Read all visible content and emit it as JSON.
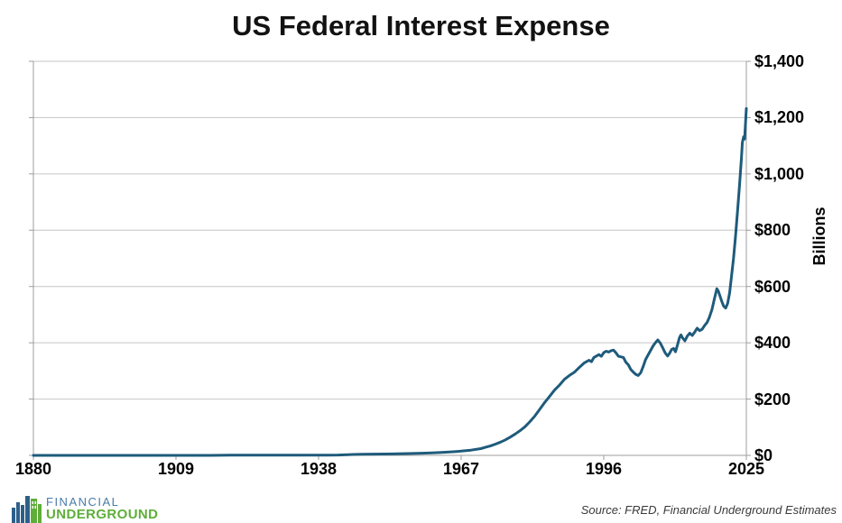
{
  "title": "US Federal Interest Expense",
  "colors": {
    "line": "#1E5B7B",
    "grid": "#C6C6C6",
    "axis": "#9C9C9C",
    "title_text": "#121212",
    "tick_text": "#000000",
    "logo_blue": "#4A7BA6",
    "logo_green": "#5FAE3A",
    "source_text": "#3A3A3A",
    "background": "#FFFFFF"
  },
  "y_axis": {
    "label": "Billions",
    "ticks": [
      "$0",
      "$200",
      "$400",
      "$600",
      "$800",
      "$1,000",
      "$1,200",
      "$1,400"
    ],
    "min": 0,
    "max": 1400,
    "step": 200
  },
  "x_axis": {
    "ticks": [
      "1880",
      "1909",
      "1938",
      "1967",
      "1996",
      "2025"
    ],
    "tick_years": [
      1880,
      1909,
      1938,
      1967,
      1996,
      2025
    ],
    "min": 1880,
    "max": 2025
  },
  "footer": {
    "logo_line1": "FINANCIAL",
    "logo_line2": "UNDERGROUND",
    "source": "Source: FRED, Financial Underground Estimates"
  },
  "chart_data": {
    "type": "line",
    "title": "US Federal Interest Expense",
    "xlabel": "",
    "ylabel": "Billions",
    "xlim": [
      1880,
      2025
    ],
    "ylim": [
      0,
      1400
    ],
    "y_tick_step": 200,
    "grid": true,
    "legend": false,
    "series": [
      {
        "name": "US Federal Interest Expense ($ Billions)",
        "color": "#1E5B7B",
        "points": [
          [
            1880,
            0.1
          ],
          [
            1885,
            0.08
          ],
          [
            1890,
            0.06
          ],
          [
            1895,
            0.05
          ],
          [
            1900,
            0.05
          ],
          [
            1905,
            0.04
          ],
          [
            1910,
            0.03
          ],
          [
            1914,
            0.03
          ],
          [
            1916,
            0.05
          ],
          [
            1918,
            0.3
          ],
          [
            1920,
            1.0
          ],
          [
            1923,
            1.05
          ],
          [
            1926,
            0.85
          ],
          [
            1929,
            0.7
          ],
          [
            1932,
            0.65
          ],
          [
            1935,
            0.8
          ],
          [
            1938,
            0.95
          ],
          [
            1940,
            1.1
          ],
          [
            1942,
            1.4
          ],
          [
            1944,
            2.6
          ],
          [
            1945,
            3.3
          ],
          [
            1947,
            4.2
          ],
          [
            1949,
            4.5
          ],
          [
            1951,
            4.7
          ],
          [
            1953,
            5.2
          ],
          [
            1955,
            6.0
          ],
          [
            1957,
            6.8
          ],
          [
            1959,
            7.6
          ],
          [
            1961,
            9.0
          ],
          [
            1963,
            10.5
          ],
          [
            1965,
            12.5
          ],
          [
            1967,
            15.0
          ],
          [
            1969,
            18.5
          ],
          [
            1971,
            24.0
          ],
          [
            1972,
            29.0
          ],
          [
            1973,
            34.0
          ],
          [
            1974,
            40.0
          ],
          [
            1975,
            47.0
          ],
          [
            1976,
            55.0
          ],
          [
            1977,
            65.0
          ],
          [
            1978,
            76.0
          ],
          [
            1979,
            88.0
          ],
          [
            1980,
            102.0
          ],
          [
            1981,
            120.0
          ],
          [
            1982,
            140.0
          ],
          [
            1983,
            164.0
          ],
          [
            1984,
            188.0
          ],
          [
            1985,
            210.0
          ],
          [
            1986,
            232.0
          ],
          [
            1987,
            250.0
          ],
          [
            1988,
            270.0
          ],
          [
            1989,
            284.0
          ],
          [
            1990,
            295.0
          ],
          [
            1991,
            312.0
          ],
          [
            1992,
            328.0
          ],
          [
            1993,
            338.0
          ],
          [
            1993.5,
            333.0
          ],
          [
            1994,
            348.0
          ],
          [
            1995,
            358.0
          ],
          [
            1995.5,
            352.0
          ],
          [
            1996,
            365.0
          ],
          [
            1996.5,
            370.0
          ],
          [
            1997,
            367.0
          ],
          [
            1997.5,
            372.0
          ],
          [
            1998,
            374.0
          ],
          [
            1998.5,
            364.0
          ],
          [
            1999,
            352.0
          ],
          [
            2000,
            348.0
          ],
          [
            2000.5,
            331.0
          ],
          [
            2001,
            322.0
          ],
          [
            2001.5,
            305.0
          ],
          [
            2002,
            296.0
          ],
          [
            2002.5,
            288.0
          ],
          [
            2003,
            284.0
          ],
          [
            2003.5,
            293.0
          ],
          [
            2004,
            315.0
          ],
          [
            2004.5,
            340.0
          ],
          [
            2005,
            356.0
          ],
          [
            2005.5,
            372.0
          ],
          [
            2006,
            388.0
          ],
          [
            2006.5,
            400.0
          ],
          [
            2007,
            410.0
          ],
          [
            2007.5,
            399.0
          ],
          [
            2008,
            382.0
          ],
          [
            2008.5,
            364.0
          ],
          [
            2009,
            353.0
          ],
          [
            2009.4,
            363.0
          ],
          [
            2009.8,
            376.0
          ],
          [
            2010.2,
            380.0
          ],
          [
            2010.6,
            368.0
          ],
          [
            2011,
            392.0
          ],
          [
            2011.4,
            418.0
          ],
          [
            2011.7,
            428.0
          ],
          [
            2012,
            418.0
          ],
          [
            2012.5,
            407.0
          ],
          [
            2013,
            424.0
          ],
          [
            2013.5,
            434.0
          ],
          [
            2014,
            426.0
          ],
          [
            2014.5,
            438.0
          ],
          [
            2015,
            452.0
          ],
          [
            2015.5,
            443.0
          ],
          [
            2016,
            448.0
          ],
          [
            2016.5,
            461.0
          ],
          [
            2017,
            472.0
          ],
          [
            2017.5,
            491.0
          ],
          [
            2018,
            518.0
          ],
          [
            2018.5,
            556.0
          ],
          [
            2019,
            592.0
          ],
          [
            2019.3,
            584.0
          ],
          [
            2019.6,
            568.0
          ],
          [
            2020,
            547.0
          ],
          [
            2020.4,
            530.0
          ],
          [
            2020.8,
            523.0
          ],
          [
            2021.2,
            540.0
          ],
          [
            2021.6,
            578.0
          ],
          [
            2022,
            640.0
          ],
          [
            2022.4,
            700.0
          ],
          [
            2022.8,
            778.0
          ],
          [
            2023.2,
            866.0
          ],
          [
            2023.6,
            958.0
          ],
          [
            2024,
            1058.0
          ],
          [
            2024.2,
            1112.0
          ],
          [
            2024.45,
            1132.0
          ],
          [
            2024.65,
            1124.0
          ],
          [
            2025,
            1232.0
          ]
        ]
      }
    ]
  }
}
